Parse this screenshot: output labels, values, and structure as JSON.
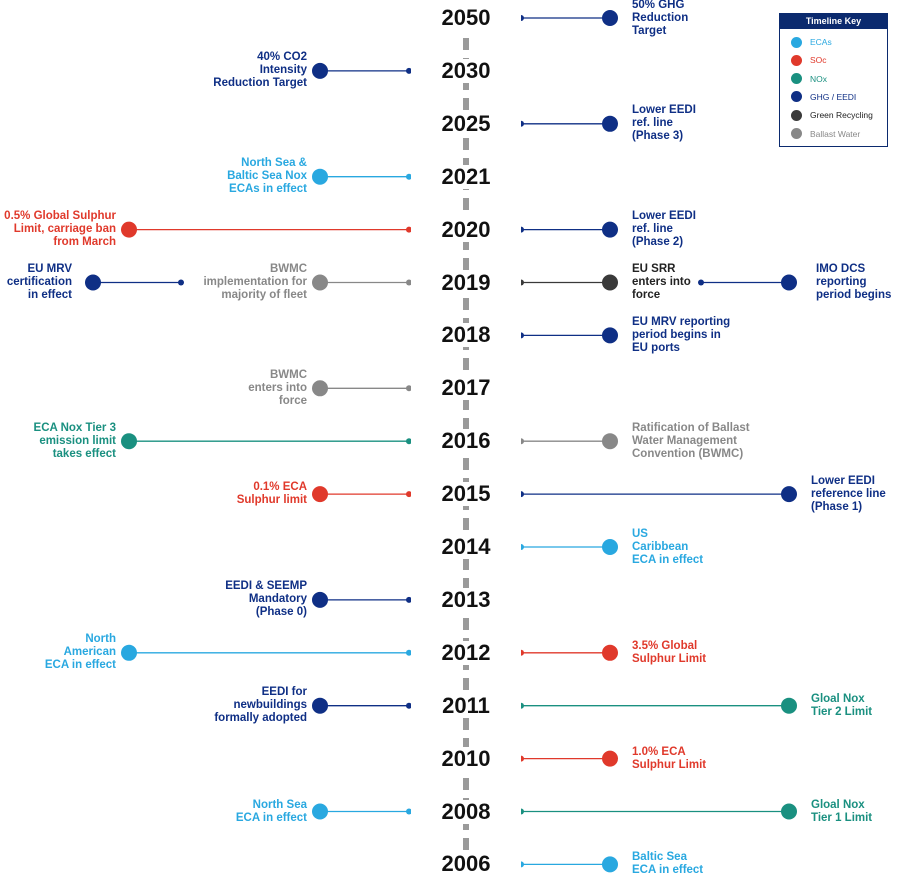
{
  "legend": {
    "title": "Timeline Key",
    "items": [
      {
        "key": "eca",
        "label": "ECAs",
        "color": "#29a8e0",
        "text_color": "#29a8e0"
      },
      {
        "key": "sox",
        "label": "SOc",
        "color": "#e0392b",
        "text_color": "#e0392b"
      },
      {
        "key": "nox",
        "label": "NOx",
        "color": "#1a9080",
        "text_color": "#1a9080"
      },
      {
        "key": "ghg",
        "label": "GHG / EEDI",
        "color": "#0f2f85",
        "text_color": "#0f2f85"
      },
      {
        "key": "green",
        "label": "Green Recycling",
        "color": "#3a3a3a",
        "text_color": "#222222"
      },
      {
        "key": "ballast",
        "label": "Ballast Water",
        "color": "#888888",
        "text_color": "#888888"
      }
    ]
  },
  "timeline": {
    "years": [
      "2050",
      "2030",
      "2025",
      "2021",
      "2020",
      "2019",
      "2018",
      "2017",
      "2016",
      "2015",
      "2014",
      "2013",
      "2012",
      "2011",
      "2010",
      "2008",
      "2006"
    ],
    "events": [
      {
        "year": "2050",
        "side": "right",
        "reach": "short",
        "cat": "ghg",
        "text": [
          "50% GHG",
          "Reduction",
          "Target"
        ]
      },
      {
        "year": "2030",
        "side": "left",
        "reach": "short",
        "cat": "ghg",
        "text": [
          "40% CO2",
          "Intensity",
          "Reduction Target"
        ]
      },
      {
        "year": "2025",
        "side": "right",
        "reach": "short",
        "cat": "ghg",
        "text": [
          "Lower EEDI",
          "ref. line",
          "(Phase 3)"
        ]
      },
      {
        "year": "2021",
        "side": "left",
        "reach": "short",
        "cat": "eca",
        "text": [
          "North Sea &",
          "Baltic Sea Nox",
          "ECAs in effect"
        ]
      },
      {
        "year": "2020",
        "side": "left",
        "reach": "long",
        "cat": "sox",
        "text": [
          "0.5% Global Sulphur",
          "Limit, carriage ban",
          "from March"
        ]
      },
      {
        "year": "2020",
        "side": "right",
        "reach": "short",
        "cat": "ghg",
        "text": [
          "Lower EEDI",
          "ref. line",
          "(Phase 2)"
        ]
      },
      {
        "year": "2019",
        "side": "left",
        "reach": "short",
        "cat": "ballast",
        "text": [
          "BWMC",
          "implementation for",
          "majority of fleet"
        ]
      },
      {
        "year": "2019",
        "side": "right",
        "reach": "short",
        "cat": "green",
        "text": [
          "EU SRR",
          "enters into",
          "force"
        ]
      },
      {
        "year": "2018",
        "side": "right",
        "reach": "short",
        "cat": "ghg",
        "text": [
          "EU MRV reporting",
          "period begins in",
          "EU ports"
        ]
      },
      {
        "year": "2017",
        "side": "left",
        "reach": "short",
        "cat": "ballast",
        "text": [
          "BWMC",
          "enters into",
          "force"
        ]
      },
      {
        "year": "2016",
        "side": "left",
        "reach": "long",
        "cat": "nox",
        "text": [
          "ECA Nox Tier 3",
          "emission limit",
          "takes effect"
        ]
      },
      {
        "year": "2016",
        "side": "right",
        "reach": "short",
        "cat": "ballast",
        "text": [
          "Ratification of Ballast",
          "Water Management",
          "Convention (BWMC)"
        ]
      },
      {
        "year": "2015",
        "side": "left",
        "reach": "short",
        "cat": "sox",
        "text": [
          "0.1% ECA",
          "Sulphur limit"
        ]
      },
      {
        "year": "2015",
        "side": "right",
        "reach": "long",
        "cat": "ghg",
        "text": [
          "Lower EEDI",
          "reference line",
          "(Phase 1)"
        ]
      },
      {
        "year": "2014",
        "side": "right",
        "reach": "short",
        "cat": "eca",
        "text": [
          "US",
          "Caribbean",
          "ECA in effect"
        ]
      },
      {
        "year": "2013",
        "side": "left",
        "reach": "short",
        "cat": "ghg",
        "text": [
          "EEDI & SEEMP",
          "Mandatory",
          "(Phase 0)"
        ]
      },
      {
        "year": "2012",
        "side": "left",
        "reach": "long",
        "cat": "eca",
        "text": [
          "North",
          "American",
          "ECA in effect"
        ]
      },
      {
        "year": "2012",
        "side": "right",
        "reach": "short",
        "cat": "sox",
        "text": [
          "3.5% Global",
          "Sulphur Limit"
        ]
      },
      {
        "year": "2011",
        "side": "left",
        "reach": "short",
        "cat": "ghg",
        "text": [
          "EEDI for",
          "newbuildings",
          "formally adopted"
        ]
      },
      {
        "year": "2011",
        "side": "right",
        "reach": "long",
        "cat": "nox",
        "text": [
          "Gloal Nox",
          "Tier 2 Limit"
        ]
      },
      {
        "year": "2010",
        "side": "right",
        "reach": "short",
        "cat": "sox",
        "text": [
          "1.0% ECA",
          "Sulphur Limit"
        ]
      },
      {
        "year": "2008",
        "side": "left",
        "reach": "short",
        "cat": "eca",
        "text": [
          "North Sea",
          "ECA in effect"
        ]
      },
      {
        "year": "2008",
        "side": "right",
        "reach": "long",
        "cat": "nox",
        "text": [
          "Gloal Nox",
          "Tier 1 Limit"
        ]
      },
      {
        "year": "2006",
        "side": "right",
        "reach": "short",
        "cat": "eca",
        "text": [
          "Baltic Sea",
          "ECA in effect"
        ]
      }
    ],
    "branches": [
      {
        "from_year": "2019",
        "from_side": "left",
        "cat": "ghg",
        "text": [
          "EU MRV",
          "certification",
          "in effect"
        ]
      },
      {
        "from_year": "2019",
        "from_side": "right",
        "cat": "ghg",
        "text": [
          "IMO DCS",
          "reporting",
          "period begins"
        ]
      }
    ]
  }
}
